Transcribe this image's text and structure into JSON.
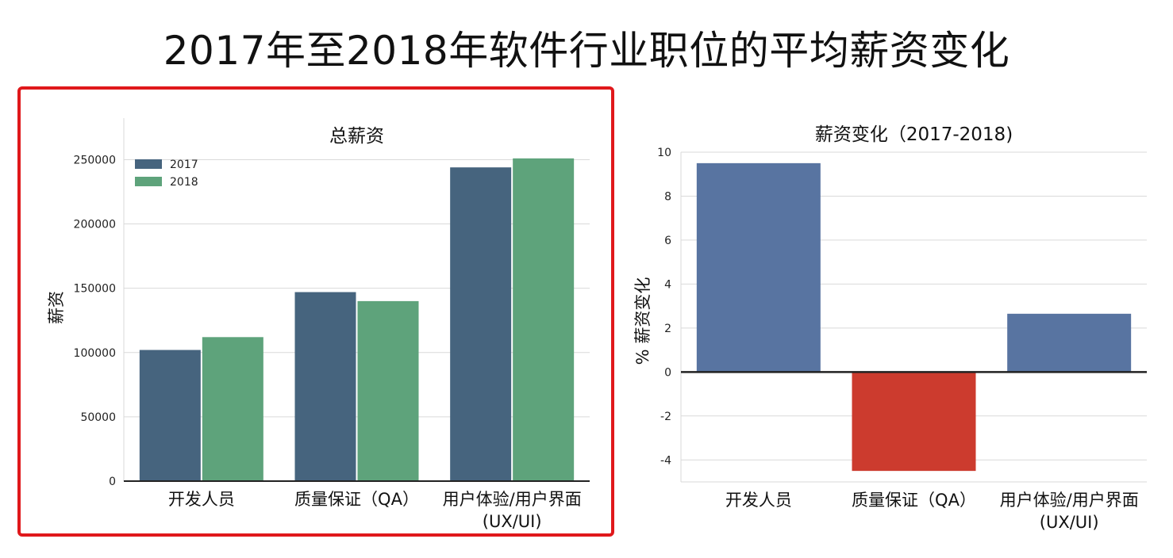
{
  "page_title": "2017年至2018年软件行业职位的平均薪资变化",
  "chart_data": [
    {
      "type": "bar",
      "title": "总薪资",
      "xlabel": "",
      "ylabel": "薪资",
      "categories": [
        "开发人员",
        "质量保证（QA）",
        "用户体验/用户界面\n(UX/UI)"
      ],
      "series": [
        {
          "name": "2017",
          "values": [
            102000,
            147000,
            244000
          ],
          "color": "#46647e"
        },
        {
          "name": "2018",
          "values": [
            112000,
            140000,
            251000
          ],
          "color": "#5ea37b"
        }
      ],
      "ylim": [
        0,
        270000
      ],
      "yticks": [
        0,
        50000,
        100000,
        150000,
        200000,
        250000
      ],
      "grid": true,
      "legend_position": "top-left",
      "highlighted": true
    },
    {
      "type": "bar",
      "title": "薪资变化（2017-2018)",
      "xlabel": "",
      "ylabel": "% 薪资变化",
      "categories": [
        "开发人员",
        "质量保证（QA）",
        "用户体验/用户界面\n(UX/UI)"
      ],
      "values": [
        9.5,
        -4.5,
        2.65
      ],
      "colors": {
        "positive": "#5874a1",
        "negative": "#cc3b2e"
      },
      "ylim": [
        -5,
        10
      ],
      "yticks": [
        -4,
        -2,
        0,
        2,
        4,
        6,
        8,
        10
      ],
      "grid": true,
      "zero_line": true
    }
  ]
}
